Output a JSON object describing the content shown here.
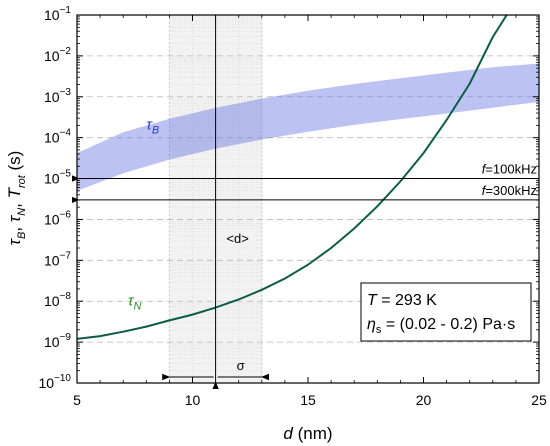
{
  "chart_data": {
    "type": "line",
    "xlabel": {
      "italic": "d",
      "rest": " (nm)"
    },
    "ylabel": "τB, τN, Trot (s)",
    "xlim": [
      5,
      25
    ],
    "ylim_log10": [
      -10,
      -1
    ],
    "y_log_scale": true,
    "x_ticks": [
      5,
      10,
      15,
      20,
      25
    ],
    "y_tick_exponents": [
      -10,
      -9,
      -8,
      -7,
      -6,
      -5,
      -4,
      -3,
      -2,
      -1
    ],
    "grid": "horizontal dashed at decades",
    "series": [
      {
        "name": "τN",
        "color": "#0d5c45",
        "x": [
          5,
          6,
          7,
          8,
          9,
          10,
          11,
          12,
          13,
          14,
          15,
          16,
          17,
          18,
          19,
          20,
          21,
          22,
          23,
          23.6
        ],
        "y": [
          1.2e-09,
          1.4e-09,
          1.8e-09,
          2.4e-09,
          3.4e-09,
          4.7e-09,
          7e-09,
          1.1e-08,
          1.9e-08,
          3.6e-08,
          7.8e-08,
          2e-07,
          6e-07,
          2.1e-06,
          8.5e-06,
          4.2e-05,
          0.00027,
          0.0021,
          0.029,
          0.1
        ]
      }
    ],
    "band": {
      "name": "τB",
      "color": "#5f6fe0",
      "x": [
        5,
        7,
        9,
        11,
        13,
        15,
        17,
        19,
        21,
        23,
        25
      ],
      "y_low": [
        5e-06,
        1.35e-05,
        2.9e-05,
        5.4e-05,
        9e-05,
        0.00014,
        0.000205,
        0.000285,
        0.00039,
        0.00054,
        0.00075
      ],
      "y_high": [
        4.2e-05,
        0.000135,
        0.00029,
        0.00054,
        0.0009,
        0.0014,
        0.00205,
        0.00285,
        0.0039,
        0.0053,
        0.0065
      ]
    },
    "hlines": [
      {
        "y": 1e-05,
        "label_italic": "f",
        "label_rest": "=100kHz"
      },
      {
        "y": 3e-06,
        "label_italic": "f",
        "label_rest": "=300kHz"
      }
    ],
    "mean_d": {
      "x": 11,
      "label": "<d>"
    },
    "sigma_region": {
      "x_range": [
        9,
        13
      ],
      "label": "σ"
    },
    "info_box": {
      "line1": {
        "italic": "T",
        "rest": " = 293 K"
      },
      "line2": {
        "italic": "η",
        "sub": "s",
        "rest": " = (0.02 - 0.2) Pa·s"
      }
    },
    "curve_labels": {
      "tauB": {
        "italic": "τ",
        "sub": "B",
        "x": 8.0,
        "y_exp": -3.8
      },
      "tauN": {
        "italic": "τ",
        "sub": "N",
        "x": 7.2,
        "y_exp": -8.1
      }
    }
  }
}
